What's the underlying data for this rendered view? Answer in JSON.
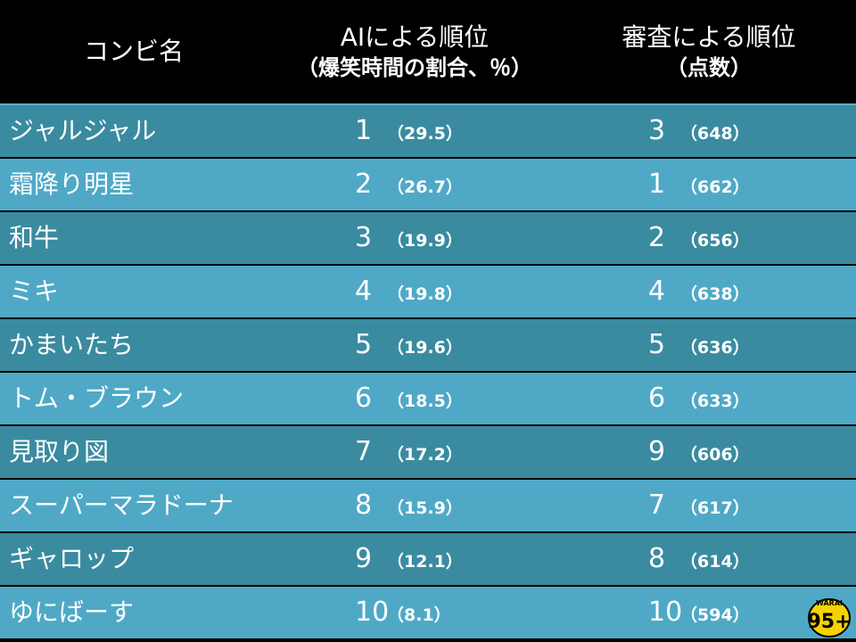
{
  "header": {
    "col_name": "コンビ名",
    "col_ai_title": "AIによる順位",
    "col_ai_sub": "（爆笑時間の割合、％）",
    "col_judge_title": "審査による順位",
    "col_judge_sub": "（点数）"
  },
  "rows": [
    {
      "name": "ジャルジャル",
      "ai_rank": "1",
      "ai_value": "（29.5）",
      "judge_rank": "3",
      "judge_value": "（648）"
    },
    {
      "name": "霜降り明星",
      "ai_rank": "2",
      "ai_value": "（26.7）",
      "judge_rank": "1",
      "judge_value": "（662）"
    },
    {
      "name": "和牛",
      "ai_rank": "3",
      "ai_value": "（19.9）",
      "judge_rank": "2",
      "judge_value": "（656）"
    },
    {
      "name": "ミキ",
      "ai_rank": "4",
      "ai_value": "（19.8）",
      "judge_rank": "4",
      "judge_value": "（638）"
    },
    {
      "name": "かまいたち",
      "ai_rank": "5",
      "ai_value": "（19.6）",
      "judge_rank": "5",
      "judge_value": "（636）"
    },
    {
      "name": "トム・ブラウン",
      "ai_rank": "6",
      "ai_value": "（18.5）",
      "judge_rank": "6",
      "judge_value": "（633）"
    },
    {
      "name": "見取り図",
      "ai_rank": "7",
      "ai_value": "（17.2）",
      "judge_rank": "9",
      "judge_value": "（606）"
    },
    {
      "name": "スーパーマラドーナ",
      "ai_rank": "8",
      "ai_value": "（15.9）",
      "judge_rank": "7",
      "judge_value": "（617）"
    },
    {
      "name": "ギャロップ",
      "ai_rank": "9",
      "ai_value": "（12.1）",
      "judge_rank": "8",
      "judge_value": "（614）"
    },
    {
      "name": "ゆにばーす",
      "ai_rank": "10",
      "ai_value": "（8.1）",
      "judge_rank": "10",
      "judge_value": "（594）"
    }
  ],
  "logo": {
    "text_top": "WARAI",
    "text_main": "95+",
    "icon": "warai-logo-icon"
  },
  "colors": {
    "header_bg": "#000000",
    "row_dark": "#3a8ba0",
    "row_light": "#4fa9c6",
    "logo_yellow": "#f5d200"
  }
}
